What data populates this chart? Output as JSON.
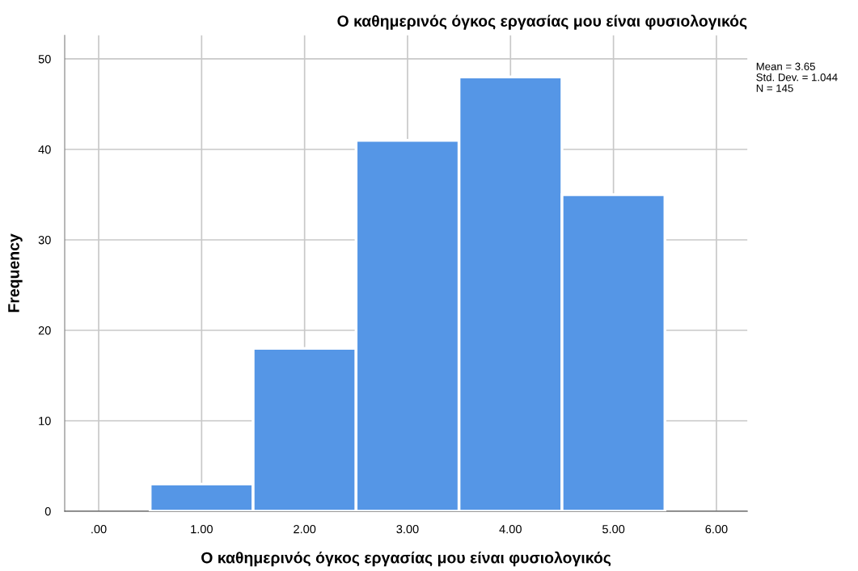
{
  "chart_data": {
    "type": "histogram",
    "title": "Ο καθημερινός όγκος εργασίας μου είναι φυσιολογικός",
    "xlabel": "Ο καθημερινός όγκος εργασίας μου είναι φυσιολογικός",
    "ylabel": "Frequency",
    "bins": [
      0.5,
      1.5,
      2.5,
      3.5,
      4.5,
      5.5
    ],
    "values": [
      3,
      18,
      41,
      48,
      35
    ],
    "color": "#5596e6",
    "xlim": [
      -0.33,
      6.3
    ],
    "xticks": [
      {
        "value": 0,
        "label": ".00"
      },
      {
        "value": 1,
        "label": "1.00"
      },
      {
        "value": 2,
        "label": "2.00"
      },
      {
        "value": 3,
        "label": "3.00"
      },
      {
        "value": 4,
        "label": "4.00"
      },
      {
        "value": 5,
        "label": "5.00"
      },
      {
        "value": 6,
        "label": "6.00"
      }
    ],
    "ylim": [
      0,
      52.6
    ],
    "yticks": [
      0,
      10,
      20,
      30,
      40,
      50
    ],
    "grid": true,
    "annotations": [
      "Mean = 3.65",
      "Std. Dev. = 1.044",
      "N = 145"
    ]
  }
}
